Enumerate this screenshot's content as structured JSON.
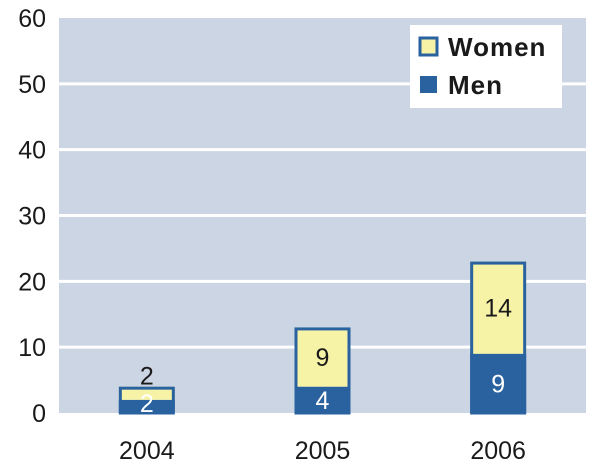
{
  "chart_data": {
    "type": "bar",
    "stacked": true,
    "categories": [
      "2004",
      "2005",
      "2006"
    ],
    "series": [
      {
        "name": "Men",
        "values": [
          2,
          4,
          9
        ],
        "color": "#2a62a0",
        "labels": [
          "2",
          "4",
          "9"
        ],
        "label_color": "#ffffff"
      },
      {
        "name": "Women",
        "values": [
          2,
          9,
          14
        ],
        "color": "#f6f3a6",
        "labels": [
          "2",
          "9",
          "14"
        ],
        "label_color": "#1a1a1a"
      }
    ],
    "title": "",
    "xlabel": "",
    "ylabel": "",
    "ylim": [
      0,
      60
    ],
    "yticks": [
      "0",
      "10",
      "20",
      "30",
      "40",
      "50",
      "60"
    ],
    "grid": true,
    "legend_position": "top-right",
    "plot_background": "#cbd5e3",
    "gridline_color": "#ffffff",
    "bar_border_color": "#2a62a0"
  }
}
